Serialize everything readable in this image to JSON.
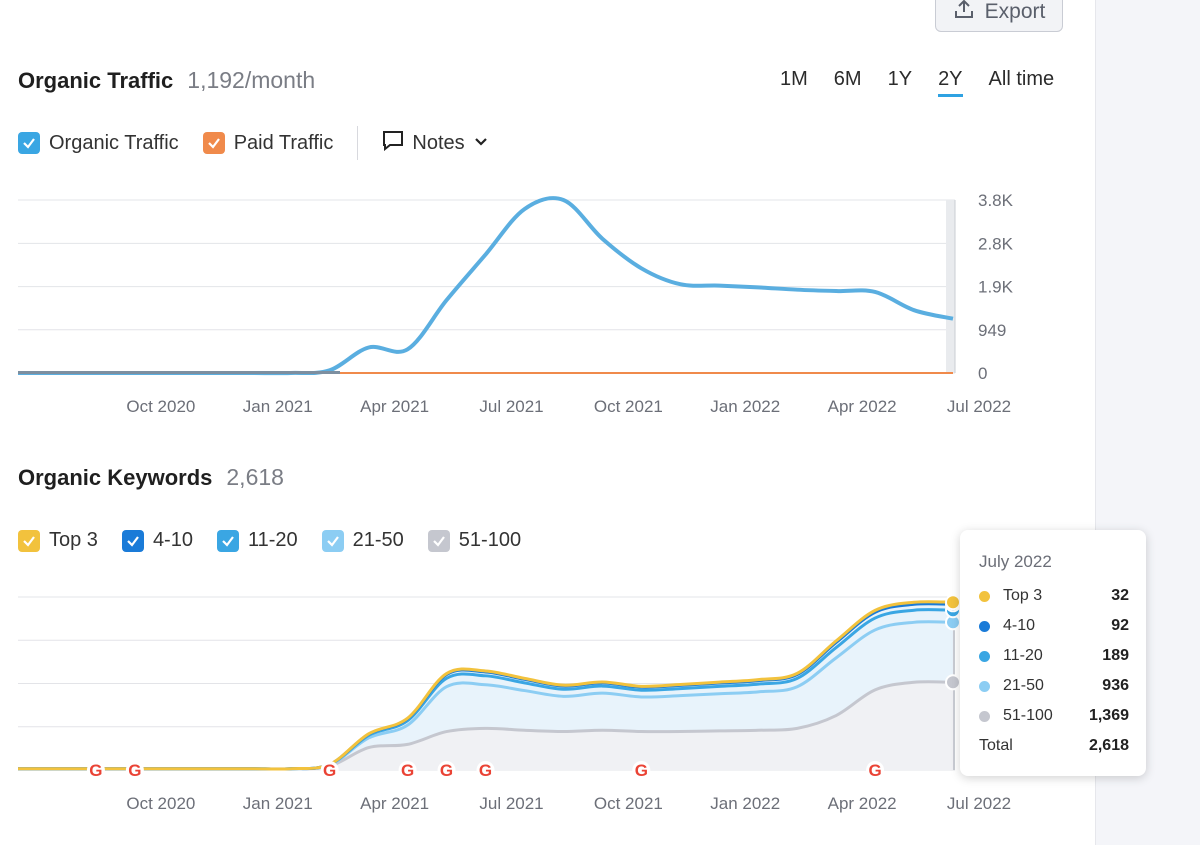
{
  "export_label": "Export",
  "traffic": {
    "title": "Organic Traffic",
    "value": "1,192/month",
    "ranges": [
      "1M",
      "6M",
      "1Y",
      "2Y",
      "All time"
    ],
    "active_range": "2Y",
    "legend": [
      {
        "label": "Organic Traffic",
        "color": "#3aa6e3",
        "checked": true
      },
      {
        "label": "Paid Traffic",
        "color": "#f08a4b",
        "checked": true
      }
    ],
    "notes_label": "Notes"
  },
  "keywords": {
    "title": "Organic Keywords",
    "value": "2,618",
    "legend": [
      {
        "label": "Top 3",
        "color": "#f2c23d"
      },
      {
        "label": "4-10",
        "color": "#1a7bd8"
      },
      {
        "label": "11-20",
        "color": "#3aa6e3"
      },
      {
        "label": "21-50",
        "color": "#8ccdf3"
      },
      {
        "label": "51-100",
        "color": "#c5c7cf"
      }
    ]
  },
  "tooltip": {
    "title": "July 2022",
    "rows": [
      {
        "label": "Top 3",
        "value": "32",
        "color": "#f2c23d"
      },
      {
        "label": "4-10",
        "value": "92",
        "color": "#1a7bd8"
      },
      {
        "label": "11-20",
        "value": "189",
        "color": "#3aa6e3"
      },
      {
        "label": "21-50",
        "value": "936",
        "color": "#8ccdf3"
      },
      {
        "label": "51-100",
        "value": "1,369",
        "color": "#c5c7cf"
      }
    ],
    "total_label": "Total",
    "total_value": "2,618"
  },
  "chart_data": [
    {
      "type": "line",
      "title": "Organic Traffic",
      "x": [
        "2020-07",
        "2020-08",
        "2020-09",
        "2020-10",
        "2020-11",
        "2020-12",
        "2021-01",
        "2021-02",
        "2021-03",
        "2021-04",
        "2021-05",
        "2021-06",
        "2021-07",
        "2021-08",
        "2021-09",
        "2021-10",
        "2021-11",
        "2021-12",
        "2022-01",
        "2022-02",
        "2022-03",
        "2022-04",
        "2022-05",
        "2022-06",
        "2022-07"
      ],
      "x_tick_labels": [
        "Oct 2020",
        "Jan 2021",
        "Apr 2021",
        "Jul 2021",
        "Oct 2021",
        "Jan 2022",
        "Apr 2022",
        "Jul 2022"
      ],
      "y_tick_labels": [
        "0",
        "949",
        "1.9K",
        "2.8K",
        "3.8K"
      ],
      "ylim": [
        0,
        3800
      ],
      "series": [
        {
          "name": "Organic Traffic",
          "color": "#5aaee0",
          "values": [
            0,
            0,
            0,
            0,
            0,
            0,
            0,
            0,
            60,
            560,
            520,
            1600,
            2600,
            3600,
            3800,
            2950,
            2300,
            1950,
            1920,
            1880,
            1830,
            1800,
            1780,
            1380,
            1192
          ]
        },
        {
          "name": "Paid Traffic",
          "color": "#f08a4b",
          "values": [
            0,
            0,
            0,
            0,
            0,
            0,
            0,
            0,
            0,
            0,
            0,
            0,
            0,
            0,
            0,
            0,
            0,
            0,
            0,
            0,
            0,
            0,
            0,
            0,
            0
          ]
        }
      ]
    },
    {
      "type": "area",
      "title": "Organic Keywords",
      "x": [
        "2020-07",
        "2020-08",
        "2020-09",
        "2020-10",
        "2020-11",
        "2020-12",
        "2021-01",
        "2021-02",
        "2021-03",
        "2021-04",
        "2021-05",
        "2021-06",
        "2021-07",
        "2021-08",
        "2021-09",
        "2021-10",
        "2021-11",
        "2021-12",
        "2022-01",
        "2022-02",
        "2022-03",
        "2022-04",
        "2022-05",
        "2022-06",
        "2022-07"
      ],
      "x_tick_labels": [
        "Oct 2020",
        "Jan 2021",
        "Apr 2021",
        "Jul 2021",
        "Oct 2021",
        "Jan 2022",
        "Apr 2022",
        "Jul 2022"
      ],
      "stacked": true,
      "series": [
        {
          "name": "51-100",
          "color": "#c5c7cf",
          "values": [
            20,
            20,
            20,
            20,
            20,
            20,
            20,
            20,
            60,
            350,
            400,
            600,
            650,
            620,
            600,
            620,
            600,
            600,
            610,
            620,
            650,
            850,
            1250,
            1369,
            1369
          ]
        },
        {
          "name": "21-50",
          "color": "#8ccdf3",
          "values": [
            0,
            0,
            0,
            0,
            0,
            0,
            0,
            0,
            20,
            150,
            300,
            700,
            680,
            620,
            550,
            580,
            540,
            560,
            580,
            600,
            650,
            900,
            936,
            936,
            936
          ]
        },
        {
          "name": "11-20",
          "color": "#3aa6e3",
          "values": [
            0,
            0,
            0,
            0,
            0,
            0,
            0,
            0,
            5,
            40,
            70,
            130,
            140,
            120,
            110,
            110,
            105,
            110,
            115,
            120,
            130,
            160,
            185,
            189,
            189
          ]
        },
        {
          "name": "4-10",
          "color": "#1a7bd8",
          "values": [
            0,
            0,
            0,
            0,
            0,
            0,
            0,
            0,
            2,
            20,
            30,
            60,
            60,
            55,
            50,
            50,
            48,
            50,
            52,
            55,
            60,
            80,
            90,
            92,
            92
          ]
        },
        {
          "name": "Top 3",
          "color": "#f2c23d",
          "values": [
            0,
            0,
            0,
            0,
            0,
            0,
            0,
            0,
            1,
            5,
            8,
            15,
            16,
            15,
            14,
            14,
            13,
            14,
            15,
            16,
            18,
            25,
            30,
            32,
            32
          ]
        }
      ],
      "google_update_markers": [
        "2020-09",
        "2020-10",
        "2021-03",
        "2021-05",
        "2021-06",
        "2021-07",
        "2021-11",
        "2022-05"
      ]
    }
  ]
}
